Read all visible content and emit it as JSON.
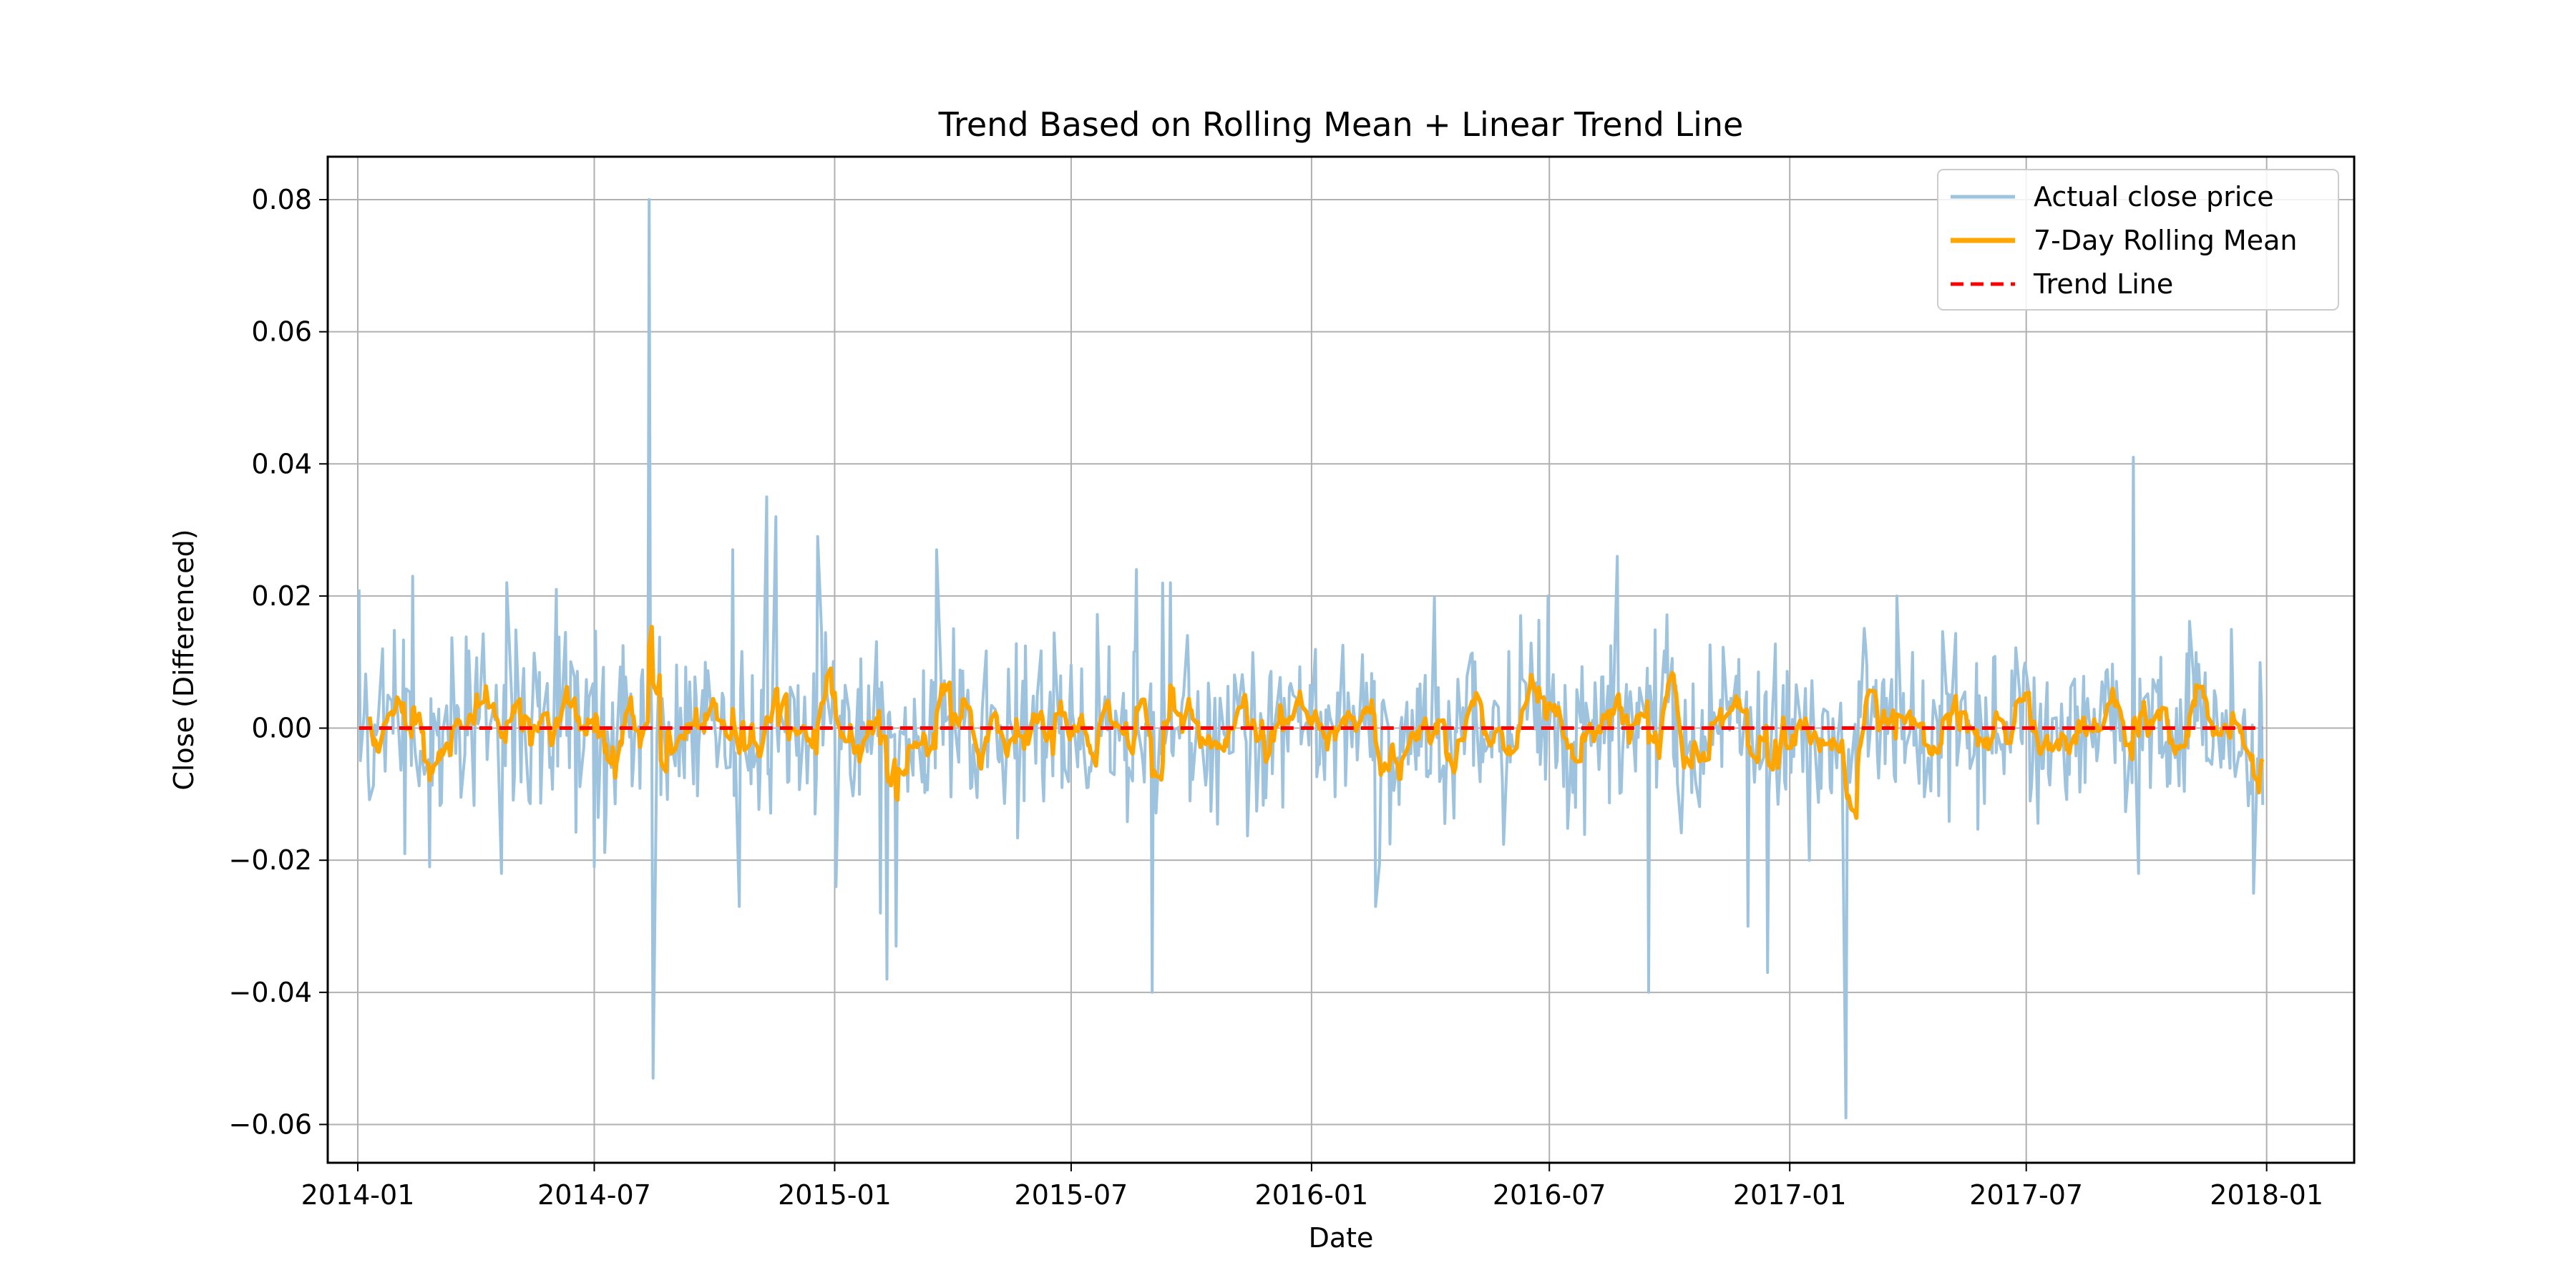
{
  "chart_data": {
    "type": "line",
    "title": "Trend Based on Rolling Mean + Linear Trend Line",
    "xlabel": "Date",
    "ylabel": "Close (Differenced)",
    "x_start": "2014-01-02",
    "x_end": "2017-12-29",
    "xlim": [
      "2013-12-09",
      "2018-03-09"
    ],
    "ylim": [
      -0.0658,
      0.0865
    ],
    "x_ticks": [
      "2014-01",
      "2014-07",
      "2015-01",
      "2015-07",
      "2016-01",
      "2016-07",
      "2017-01",
      "2017-07",
      "2018-01"
    ],
    "y_ticks": [
      "0.08",
      "0.06",
      "0.04",
      "0.02",
      "0.00",
      "−0.02",
      "−0.04",
      "−0.06"
    ],
    "grid": true,
    "legend_position": "top-right",
    "series": [
      {
        "name": "Actual close price",
        "color": "#9ec3df",
        "style": "solid",
        "approximate": true,
        "amplitude_typical": 0.009,
        "notable_points": [
          {
            "x": "2014-01-02",
            "y": 0.021
          },
          {
            "x": "2014-01-20",
            "y": 0.012
          },
          {
            "x": "2014-02-06",
            "y": -0.019
          },
          {
            "x": "2014-02-12",
            "y": 0.023
          },
          {
            "x": "2014-02-25",
            "y": -0.021
          },
          {
            "x": "2014-04-20",
            "y": -0.022
          },
          {
            "x": "2014-04-25",
            "y": 0.022
          },
          {
            "x": "2014-06-01",
            "y": 0.021
          },
          {
            "x": "2014-07-01",
            "y": -0.021
          },
          {
            "x": "2014-08-12",
            "y": 0.08
          },
          {
            "x": "2014-08-15",
            "y": -0.053
          },
          {
            "x": "2014-10-15",
            "y": 0.027
          },
          {
            "x": "2014-10-19",
            "y": -0.027
          },
          {
            "x": "2014-11-10",
            "y": 0.035
          },
          {
            "x": "2014-11-17",
            "y": 0.032
          },
          {
            "x": "2014-12-20",
            "y": 0.029
          },
          {
            "x": "2015-01-02",
            "y": -0.024
          },
          {
            "x": "2015-02-05",
            "y": -0.028
          },
          {
            "x": "2015-02-10",
            "y": -0.038
          },
          {
            "x": "2015-02-17",
            "y": -0.033
          },
          {
            "x": "2015-03-20",
            "y": 0.027
          },
          {
            "x": "2015-08-20",
            "y": 0.024
          },
          {
            "x": "2015-09-01",
            "y": -0.04
          },
          {
            "x": "2015-09-15",
            "y": 0.022
          },
          {
            "x": "2016-02-20",
            "y": -0.027
          },
          {
            "x": "2016-06-30",
            "y": 0.02
          },
          {
            "x": "2016-08-22",
            "y": 0.026
          },
          {
            "x": "2016-09-15",
            "y": -0.04
          },
          {
            "x": "2016-11-30",
            "y": -0.03
          },
          {
            "x": "2016-12-15",
            "y": -0.037
          },
          {
            "x": "2017-02-12",
            "y": -0.059
          },
          {
            "x": "2017-03-25",
            "y": 0.02
          },
          {
            "x": "2017-09-21",
            "y": 0.041
          },
          {
            "x": "2017-09-25",
            "y": -0.022
          },
          {
            "x": "2017-12-22",
            "y": -0.025
          }
        ]
      },
      {
        "name": "7-Day Rolling Mean",
        "color": "#ffa500",
        "style": "solid",
        "approximate": true,
        "amplitude_typical": 0.004,
        "notable_points": [
          {
            "x": "2014-02-15",
            "y": 0.011
          },
          {
            "x": "2014-03-10",
            "y": -0.006
          },
          {
            "x": "2014-08-05",
            "y": -0.012
          },
          {
            "x": "2014-08-20",
            "y": 0.008
          },
          {
            "x": "2014-10-20",
            "y": -0.007
          },
          {
            "x": "2014-11-05",
            "y": 0.009
          },
          {
            "x": "2014-12-28",
            "y": 0.014
          },
          {
            "x": "2015-02-10",
            "y": -0.009
          },
          {
            "x": "2015-08-25",
            "y": 0.009
          },
          {
            "x": "2015-09-05",
            "y": -0.015
          },
          {
            "x": "2015-11-25",
            "y": -0.008
          },
          {
            "x": "2016-07-05",
            "y": 0.009
          },
          {
            "x": "2016-11-20",
            "y": 0.01
          },
          {
            "x": "2017-02-05",
            "y": -0.008
          },
          {
            "x": "2017-03-20",
            "y": 0.009
          },
          {
            "x": "2017-12-29",
            "y": -0.007
          }
        ]
      },
      {
        "name": "Trend Line",
        "color": "#ff0000",
        "style": "dashed",
        "x": [
          "2014-01-02",
          "2017-12-29"
        ],
        "y": [
          0.0,
          0.0
        ]
      }
    ]
  }
}
